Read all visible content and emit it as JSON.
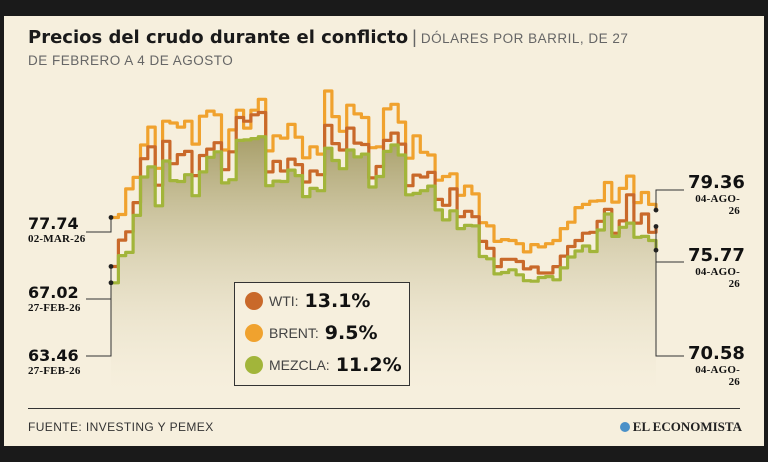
{
  "header": {
    "title": "Precios del crudo durante el conflicto",
    "separator": "|",
    "subtitle": "DÓLARES POR BARRIL, DE 27 DE FEBRERO A 4 DE AGOSTO"
  },
  "chart_data": {
    "type": "line",
    "title": "Precios del crudo durante el conflicto",
    "subtitle": "DÓLARES POR BARRIL, DE 27 DE FEBRERO A 4 DE AGOSTO",
    "xlabel": "",
    "ylabel": "",
    "ylim": [
      40,
      110
    ],
    "grid": false,
    "legend_position": "center",
    "series": [
      {
        "name": "WTI",
        "change": "13.1%",
        "color": "#c9692a",
        "values": [
          67.02,
          72.8,
          74.6,
          81.0,
          90.6,
          93.2,
          84.8,
          94.4,
          89.5,
          91.5,
          92.2,
          86.9,
          91.3,
          92.7,
          94.1,
          88.2,
          92.1,
          99.6,
          98.8,
          100.2,
          100.7,
          87.7,
          90.0,
          87.9,
          90.5,
          89.3,
          85.5,
          87.9,
          87.1,
          97.9,
          93.9,
          92.5,
          97.3,
          94.0,
          93.7,
          86.4,
          88.9,
          94.6,
          96.2,
          93.8,
          84.7,
          87.0,
          86.6,
          87.6,
          81.7,
          80.4,
          84.0,
          77.9,
          79.1,
          77.9,
          72.5,
          71.0,
          67.0,
          68.6,
          68.6,
          68.1,
          66.5,
          66.9,
          65.6,
          65.6,
          67.0,
          69.3,
          71.4,
          72.7,
          74.3,
          74.5,
          76.9,
          79.5,
          74.3,
          77.0,
          82.7,
          76.5,
          78.5,
          74.5,
          75.77
        ]
      },
      {
        "name": "BRENT",
        "change": "9.5%",
        "color": "#f0a22e",
        "values": [
          77.74,
          78.4,
          84.0,
          86.5,
          93.6,
          97.5,
          88.5,
          98.8,
          98.4,
          97.5,
          98.8,
          93.8,
          99.9,
          101.0,
          100.2,
          92.5,
          96.9,
          101.2,
          97.3,
          101.2,
          103.6,
          92.3,
          95.6,
          95.1,
          98.1,
          95.3,
          90.8,
          93.2,
          91.6,
          105.4,
          99.8,
          96.6,
          102.3,
          100.4,
          99.6,
          93.0,
          93.2,
          101.5,
          102.5,
          98.6,
          90.7,
          95.6,
          92.0,
          91.4,
          85.9,
          86.7,
          87.3,
          82.6,
          84.6,
          82.9,
          76.6,
          75.9,
          72.5,
          72.9,
          72.7,
          72.0,
          70.2,
          71.8,
          71.3,
          72.0,
          72.7,
          75.3,
          76.7,
          79.9,
          80.6,
          81.3,
          81.4,
          85.4,
          81.1,
          84.1,
          86.8,
          81.0,
          83.2,
          80.6,
          79.36
        ]
      },
      {
        "name": "MEZCLA",
        "change": "11.2%",
        "color": "#a2b53a",
        "values": [
          63.46,
          69.4,
          70.1,
          78.2,
          86.6,
          88.8,
          80.3,
          90.1,
          85.8,
          85.6,
          87.1,
          82.5,
          87.7,
          90.9,
          92.1,
          85.3,
          86.0,
          94.6,
          94.7,
          95.0,
          95.4,
          84.7,
          85.7,
          85.6,
          88.1,
          86.9,
          82.3,
          84.1,
          83.6,
          92.9,
          90.2,
          88.4,
          92.5,
          91.0,
          91.6,
          84.4,
          86.7,
          92.2,
          93.6,
          91.4,
          82.7,
          83.0,
          83.6,
          84.6,
          79.4,
          77.2,
          79.2,
          75.3,
          76.0,
          75.9,
          69.2,
          68.7,
          65.4,
          65.7,
          66.3,
          65.2,
          63.9,
          63.8,
          64.6,
          64.8,
          64.1,
          66.7,
          69.1,
          70.4,
          71.5,
          70.3,
          75.0,
          78.5,
          73.6,
          75.6,
          76.5,
          73.4,
          73.6,
          72.7,
          70.58
        ]
      }
    ]
  },
  "start_labels": [
    {
      "value": "77.74",
      "date": "02-MAR-26"
    },
    {
      "value": "67.02",
      "date": "27-FEB-26"
    },
    {
      "value": "63.46",
      "date": "27-FEB-26"
    }
  ],
  "end_labels": [
    {
      "value": "79.36",
      "date": "04-AGO-26"
    },
    {
      "value": "75.77",
      "date": "04-AGO-26"
    },
    {
      "value": "70.58",
      "date": "04-AGO-26"
    }
  ],
  "legend": {
    "items": [
      {
        "label": "WTI:",
        "value": "13.1%"
      },
      {
        "label": "BRENT:",
        "value": "9.5%"
      },
      {
        "label": "MEZCLA:",
        "value": "11.2%"
      }
    ]
  },
  "footer": {
    "source": "FUENTE: INVESTING Y PEMEX",
    "brand": "EL ECONOMISTA"
  }
}
